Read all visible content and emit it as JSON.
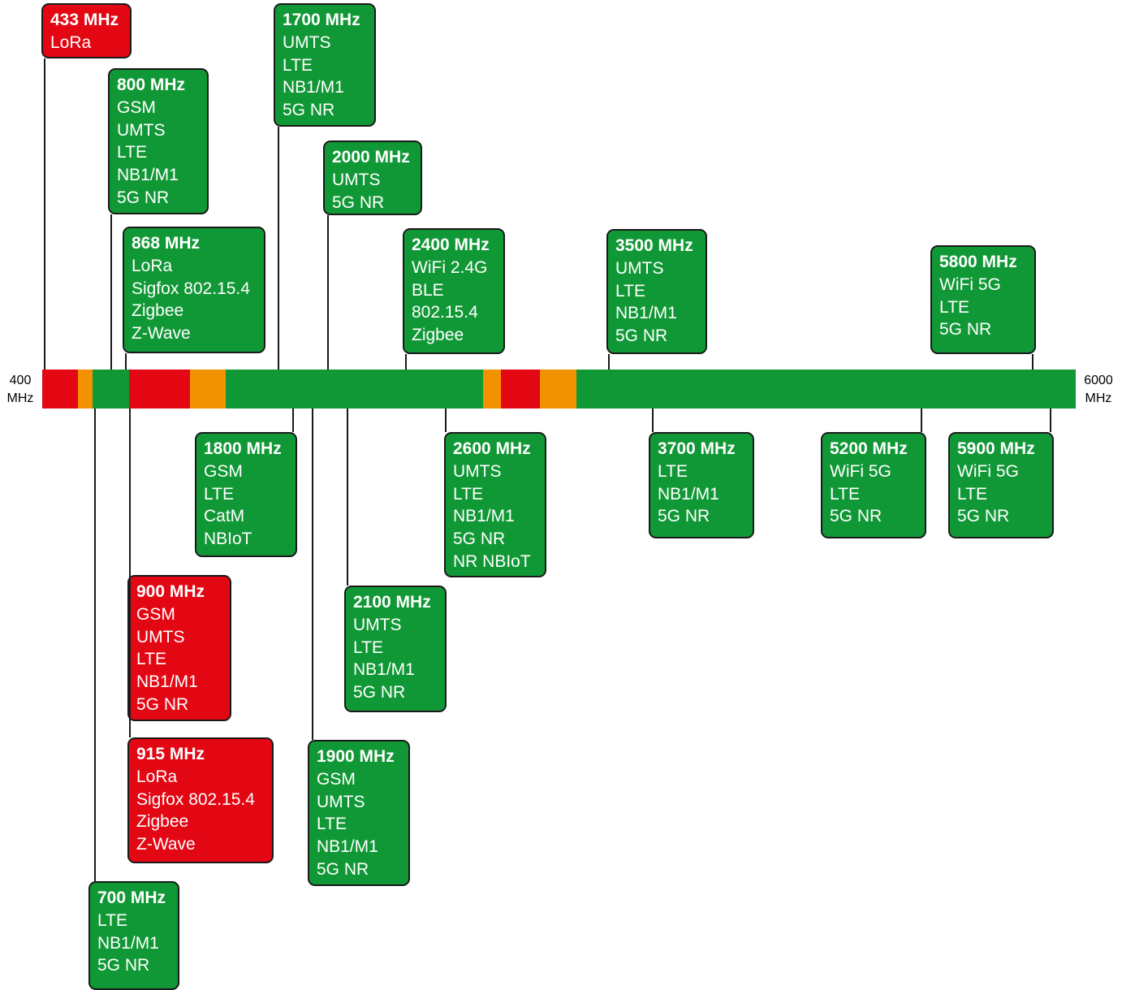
{
  "axis": {
    "start_label": [
      "400",
      "MHz"
    ],
    "end_label": [
      "6000",
      "MHz"
    ]
  },
  "colors": {
    "green": "#119836",
    "red": "#e30613",
    "orange": "#f39200",
    "line": "#1a1a1a"
  },
  "bar_segments": [
    {
      "color": "red"
    },
    {
      "color": "orange"
    },
    {
      "color": "green"
    },
    {
      "color": "red"
    },
    {
      "color": "orange"
    },
    {
      "color": "green"
    },
    {
      "color": "orange"
    },
    {
      "color": "red"
    },
    {
      "color": "orange"
    },
    {
      "color": "green"
    }
  ],
  "bands": [
    {
      "freq": "433 MHz",
      "color": "red",
      "side": "above",
      "techs": [
        "LoRa"
      ]
    },
    {
      "freq": "800 MHz",
      "color": "green",
      "side": "above",
      "techs": [
        "GSM",
        "UMTS",
        "LTE",
        "NB1/M1",
        "5G NR"
      ]
    },
    {
      "freq": "868 MHz",
      "color": "green",
      "side": "above",
      "techs": [
        "LoRa",
        "Sigfox 802.15.4",
        "Zigbee",
        "Z-Wave"
      ]
    },
    {
      "freq": "1700 MHz",
      "color": "green",
      "side": "above",
      "techs": [
        "UMTS",
        "LTE",
        "NB1/M1",
        "5G NR"
      ]
    },
    {
      "freq": "2000 MHz",
      "color": "green",
      "side": "above",
      "techs": [
        "UMTS",
        "5G NR"
      ]
    },
    {
      "freq": "2400 MHz",
      "color": "green",
      "side": "above",
      "techs": [
        "WiFi 2.4G",
        "BLE",
        "802.15.4",
        "Zigbee"
      ]
    },
    {
      "freq": "3500 MHz",
      "color": "green",
      "side": "above",
      "techs": [
        "UMTS",
        "LTE",
        "NB1/M1",
        "5G NR"
      ]
    },
    {
      "freq": "5800 MHz",
      "color": "green",
      "side": "above",
      "techs": [
        "WiFi 5G",
        "LTE",
        "5G NR"
      ]
    },
    {
      "freq": "1800 MHz",
      "color": "green",
      "side": "below",
      "techs": [
        "GSM",
        "LTE",
        "CatM",
        "NBIoT"
      ]
    },
    {
      "freq": "2600 MHz",
      "color": "green",
      "side": "below",
      "techs": [
        "UMTS",
        "LTE",
        "NB1/M1",
        "5G NR",
        "NR NBIoT"
      ]
    },
    {
      "freq": "3700 MHz",
      "color": "green",
      "side": "below",
      "techs": [
        "LTE",
        "NB1/M1",
        "5G NR"
      ]
    },
    {
      "freq": "5200 MHz",
      "color": "green",
      "side": "below",
      "techs": [
        "WiFi 5G",
        "LTE",
        "5G NR"
      ]
    },
    {
      "freq": "5900 MHz",
      "color": "green",
      "side": "below",
      "techs": [
        "WiFi 5G",
        "LTE",
        "5G NR"
      ]
    },
    {
      "freq": "900 MHz",
      "color": "red",
      "side": "below",
      "techs": [
        "GSM",
        "UMTS",
        "LTE",
        "NB1/M1",
        "5G NR"
      ]
    },
    {
      "freq": "2100 MHz",
      "color": "green",
      "side": "below",
      "techs": [
        "UMTS",
        "LTE",
        "NB1/M1",
        "5G NR"
      ]
    },
    {
      "freq": "915 MHz",
      "color": "red",
      "side": "below",
      "techs": [
        "LoRa",
        "Sigfox 802.15.4",
        "Zigbee",
        "Z-Wave"
      ]
    },
    {
      "freq": "1900 MHz",
      "color": "green",
      "side": "below",
      "techs": [
        "GSM",
        "UMTS",
        "LTE",
        "NB1/M1",
        "5G NR"
      ]
    },
    {
      "freq": "700 MHz",
      "color": "green",
      "side": "below",
      "techs": [
        "LTE",
        "NB1/M1",
        "5G NR"
      ]
    }
  ]
}
